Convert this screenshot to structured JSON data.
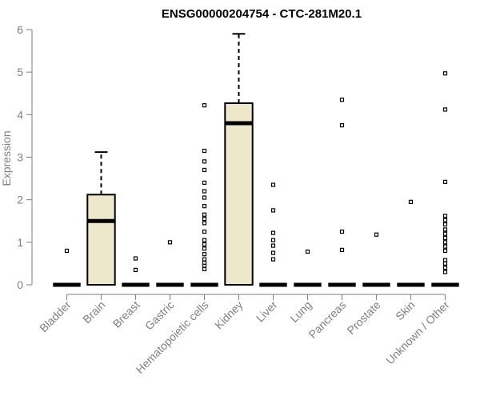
{
  "chart_data": {
    "type": "box",
    "title": "ENSG00000204754 - CTC-281M20.1",
    "xlabel": "",
    "ylabel": "Expression",
    "ylim": [
      0,
      6
    ],
    "yticks": [
      0,
      1,
      2,
      3,
      4,
      5,
      6
    ],
    "grid": false,
    "legend": "none",
    "box_fill": "#ede7cc",
    "box_stroke": "#000000",
    "categories": [
      "Bladder",
      "Brain",
      "Breast",
      "Gastric",
      "Hematopoietic cells",
      "Kidney",
      "Liver",
      "Lung",
      "Pancreas",
      "Prostate",
      "Skin",
      "Unknown / Other"
    ],
    "boxes": [
      {
        "category": "Bladder",
        "min": 0,
        "q1": 0,
        "median": 0,
        "q3": 0,
        "max": 0,
        "outliers": [
          0.8
        ]
      },
      {
        "category": "Brain",
        "min": 0,
        "q1": 0,
        "median": 1.5,
        "q3": 2.12,
        "max": 3.12,
        "outliers": []
      },
      {
        "category": "Breast",
        "min": 0,
        "q1": 0,
        "median": 0,
        "q3": 0,
        "max": 0,
        "outliers": [
          0.35,
          0.62
        ]
      },
      {
        "category": "Gastric",
        "min": 0,
        "q1": 0,
        "median": 0,
        "q3": 0,
        "max": 0,
        "outliers": [
          1.0
        ]
      },
      {
        "category": "Hematopoietic cells",
        "min": 0,
        "q1": 0,
        "median": 0,
        "q3": 0,
        "max": 0,
        "outliers": [
          0.37,
          0.45,
          0.52,
          0.6,
          0.72,
          0.85,
          0.95,
          1.05,
          1.25,
          1.45,
          1.55,
          1.65,
          1.85,
          2.05,
          2.2,
          2.4,
          2.7,
          2.9,
          3.15,
          4.22
        ]
      },
      {
        "category": "Kidney",
        "min": 0,
        "q1": 0,
        "median": 3.8,
        "q3": 4.27,
        "max": 5.9,
        "outliers": []
      },
      {
        "category": "Liver",
        "min": 0,
        "q1": 0,
        "median": 0,
        "q3": 0,
        "max": 0,
        "outliers": [
          0.6,
          0.75,
          0.92,
          1.05,
          1.22,
          1.75,
          2.35
        ]
      },
      {
        "category": "Lung",
        "min": 0,
        "q1": 0,
        "median": 0,
        "q3": 0,
        "max": 0,
        "outliers": [
          0.78
        ]
      },
      {
        "category": "Pancreas",
        "min": 0,
        "q1": 0,
        "median": 0,
        "q3": 0,
        "max": 0,
        "outliers": [
          0.82,
          1.25,
          3.75,
          4.35
        ]
      },
      {
        "category": "Prostate",
        "min": 0,
        "q1": 0,
        "median": 0,
        "q3": 0,
        "max": 0,
        "outliers": [
          1.18
        ]
      },
      {
        "category": "Skin",
        "min": 0,
        "q1": 0,
        "median": 0,
        "q3": 0,
        "max": 0,
        "outliers": [
          1.95
        ]
      },
      {
        "category": "Unknown / Other",
        "min": 0,
        "q1": 0,
        "median": 0,
        "q3": 0,
        "max": 0,
        "outliers": [
          0.3,
          0.4,
          0.5,
          0.58,
          0.8,
          0.9,
          1.0,
          1.1,
          1.2,
          1.3,
          1.42,
          1.52,
          1.62,
          2.42,
          4.12,
          4.97
        ]
      }
    ]
  }
}
